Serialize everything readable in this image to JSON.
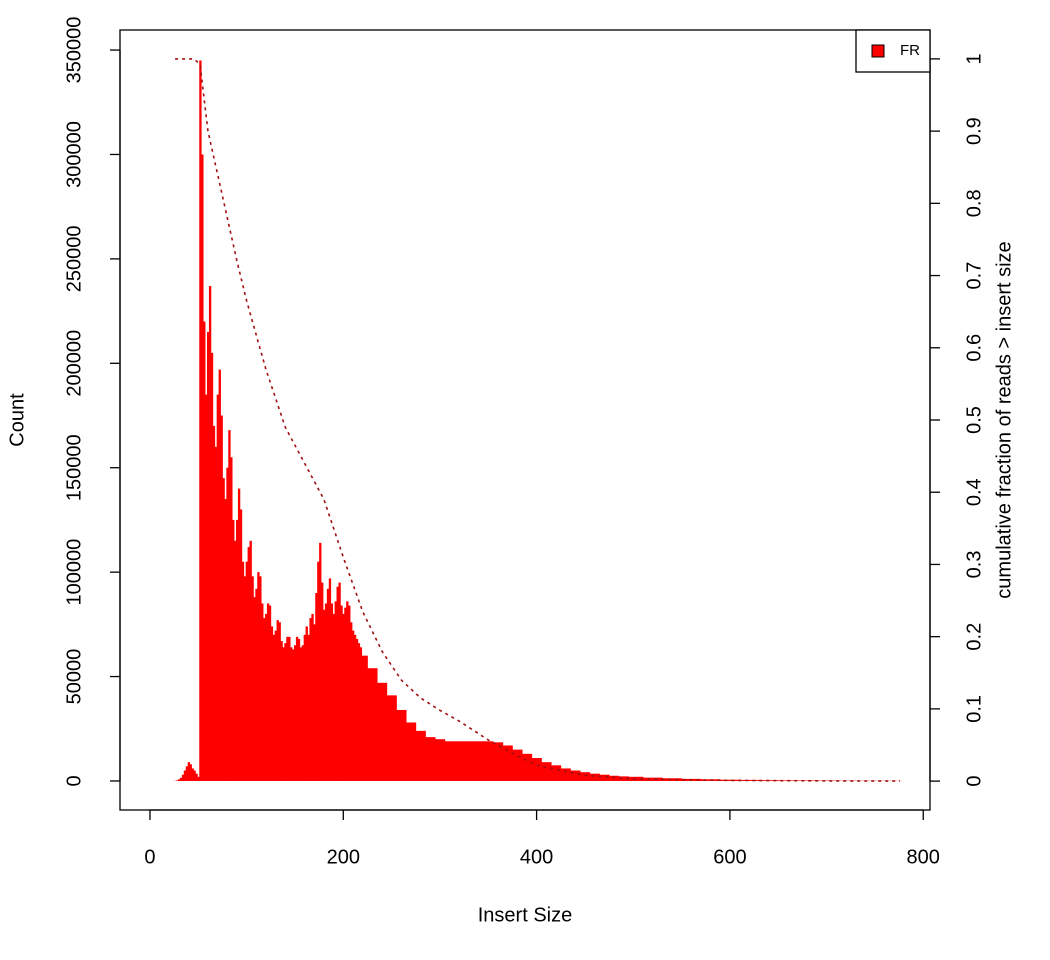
{
  "chart_data": {
    "type": "bar",
    "xlabel": "Insert Size",
    "ylabel": "Count",
    "y2label": "cumulative fraction of reads > insert size",
    "xlim": [
      -31,
      807
    ],
    "ylim": [
      -13900,
      359600
    ],
    "y2lim": [
      -0.04,
      1.04
    ],
    "xticks": [
      0,
      200,
      400,
      600,
      800
    ],
    "yticks": [
      0,
      50000,
      100000,
      150000,
      200000,
      250000,
      300000,
      350000
    ],
    "y2ticks": [
      0,
      0.1,
      0.2,
      0.3,
      0.4,
      0.5,
      0.6,
      0.7,
      0.8,
      0.9,
      1
    ],
    "legend": "topright",
    "series": [
      {
        "name": "FR",
        "color": "#ff0000",
        "x": [
          26,
          28,
          30,
          32,
          34,
          36,
          38,
          40,
          42,
          44,
          46,
          48,
          50,
          52,
          54,
          56,
          58,
          60,
          62,
          64,
          66,
          68,
          70,
          72,
          74,
          76,
          78,
          80,
          82,
          84,
          86,
          88,
          90,
          92,
          94,
          96,
          98,
          100,
          102,
          104,
          106,
          108,
          110,
          112,
          114,
          116,
          118,
          120,
          122,
          124,
          126,
          128,
          130,
          132,
          134,
          136,
          138,
          140,
          142,
          144,
          146,
          148,
          150,
          152,
          154,
          156,
          158,
          160,
          162,
          164,
          166,
          168,
          170,
          172,
          174,
          176,
          178,
          180,
          182,
          184,
          186,
          188,
          190,
          192,
          194,
          196,
          198,
          200,
          202,
          204,
          206,
          208,
          210,
          212,
          214,
          216,
          218,
          220,
          230,
          240,
          250,
          260,
          270,
          280,
          290,
          300,
          310,
          320,
          330,
          340,
          350,
          360,
          370,
          380,
          390,
          400,
          410,
          420,
          430,
          440,
          450,
          460,
          470,
          480,
          490,
          500,
          520,
          540,
          560,
          580,
          600,
          620,
          640,
          660,
          680,
          700,
          720,
          740,
          760,
          776
        ],
        "values": [
          100,
          300,
          800,
          1500,
          3000,
          5000,
          7000,
          9000,
          8000,
          6000,
          5000,
          3500,
          2000,
          345000,
          300000,
          220000,
          185000,
          215000,
          237000,
          205000,
          170000,
          160000,
          185000,
          197000,
          175000,
          145000,
          135000,
          150000,
          168000,
          155000,
          125000,
          115000,
          125000,
          140000,
          130000,
          105000,
          98000,
          105000,
          112000,
          115000,
          98000,
          88000,
          92000,
          100000,
          98000,
          85000,
          78000,
          80000,
          85000,
          84000,
          74000,
          70000,
          72000,
          77000,
          76000,
          67000,
          64000,
          66000,
          69000,
          69000,
          64000,
          63000,
          65000,
          69000,
          68000,
          64000,
          65000,
          70000,
          74000,
          70000,
          78000,
          80000,
          75000,
          90000,
          105000,
          114000,
          95000,
          82000,
          85000,
          92000,
          97000,
          85000,
          80000,
          86000,
          93000,
          95000,
          84000,
          80000,
          83000,
          86000,
          84000,
          76000,
          72000,
          70000,
          68000,
          66000,
          64000,
          60000,
          54000,
          47000,
          41000,
          34000,
          28000,
          24000,
          21000,
          20000,
          19000,
          19000,
          19000,
          19000,
          19000,
          18500,
          17000,
          15000,
          13000,
          11000,
          9000,
          7500,
          6000,
          5000,
          4200,
          3500,
          3000,
          2500,
          2200,
          2000,
          1600,
          1300,
          1000,
          800,
          600,
          500,
          400,
          300,
          250,
          200,
          150,
          120,
          100,
          80
        ]
      },
      {
        "type": "line",
        "axis": "y2",
        "color": "#a01010",
        "style": "dashed",
        "x": [
          26,
          45,
          50,
          52,
          60,
          70,
          80,
          90,
          100,
          120,
          140,
          160,
          180,
          200,
          220,
          240,
          260,
          280,
          300,
          320,
          350,
          380,
          400,
          450,
          500,
          600,
          700,
          776
        ],
        "values": [
          1,
          1,
          0.995,
          0.99,
          0.9,
          0.84,
          0.78,
          0.72,
          0.665,
          0.57,
          0.49,
          0.44,
          0.39,
          0.31,
          0.235,
          0.18,
          0.14,
          0.115,
          0.098,
          0.083,
          0.057,
          0.035,
          0.022,
          0.008,
          0.003,
          0.001,
          0.0003,
          0
        ]
      }
    ]
  }
}
